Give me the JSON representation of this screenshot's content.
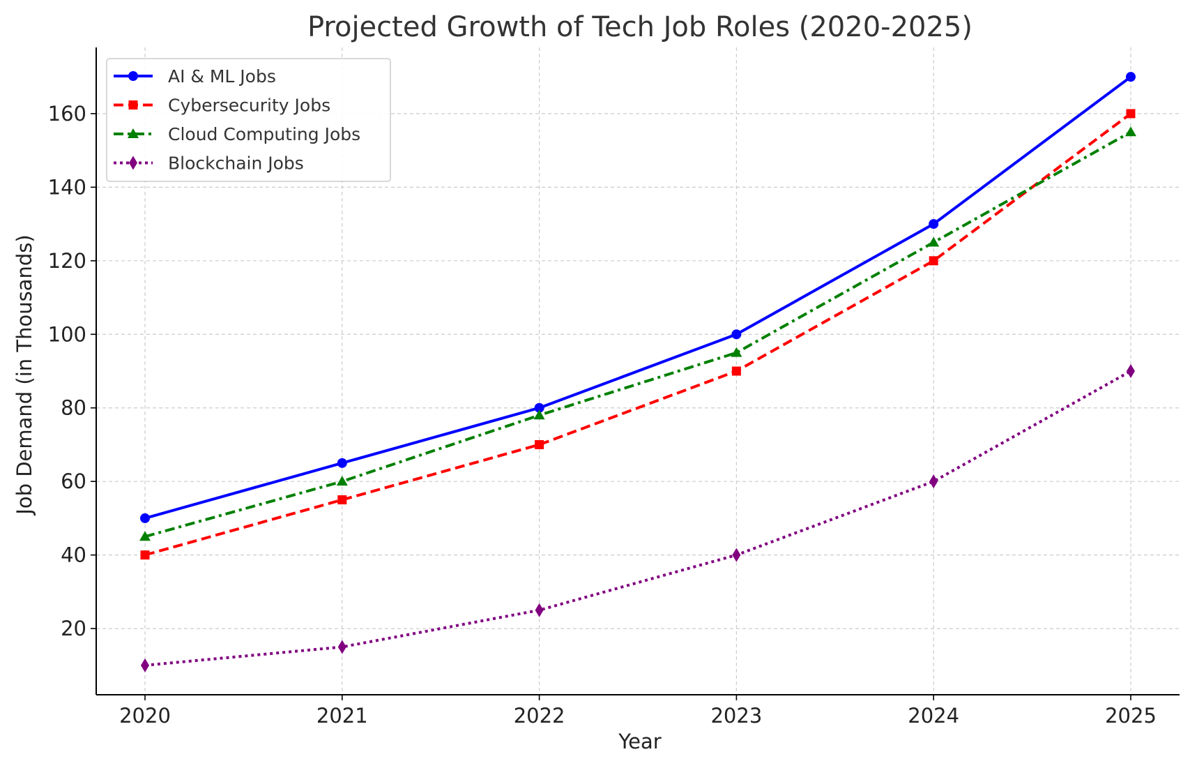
{
  "chart_data": {
    "type": "line",
    "title": "Projected Growth of Tech Job Roles (2020-2025)",
    "xlabel": "Year",
    "ylabel": "Job Demand (in Thousands)",
    "x": [
      "2020",
      "2021",
      "2022",
      "2023",
      "2024",
      "2025"
    ],
    "ylim": [
      2,
      178
    ],
    "yticks": [
      20,
      40,
      60,
      80,
      100,
      120,
      140,
      160
    ],
    "grid": true,
    "legend_position": "top-left",
    "series": [
      {
        "name": "AI & ML Jobs",
        "values": [
          50,
          65,
          80,
          100,
          130,
          170
        ],
        "color": "#0000ff",
        "line_style": "solid",
        "marker": "circle"
      },
      {
        "name": "Cybersecurity Jobs",
        "values": [
          40,
          55,
          70,
          90,
          120,
          160
        ],
        "color": "#ff0000",
        "line_style": "dashed",
        "marker": "square"
      },
      {
        "name": "Cloud Computing Jobs",
        "values": [
          45,
          60,
          78,
          95,
          125,
          155
        ],
        "color": "#008000",
        "line_style": "dashdot",
        "marker": "triangle"
      },
      {
        "name": "Blockchain Jobs",
        "values": [
          10,
          15,
          25,
          40,
          60,
          90
        ],
        "color": "#800080",
        "line_style": "dotted",
        "marker": "diamond"
      }
    ]
  }
}
